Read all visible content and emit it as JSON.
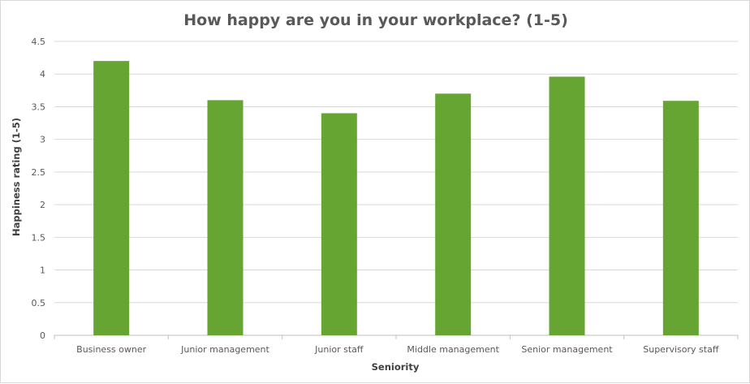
{
  "chart_data": {
    "type": "bar",
    "title": "How happy are you in your workplace? (1-5)",
    "xlabel": "Seniority",
    "ylabel": "Happiness rating (1-5)",
    "categories": [
      "Business owner",
      "Junior management",
      "Junior staff",
      "Middle management",
      "Senior management",
      "Supervisory staff"
    ],
    "values": [
      4.2,
      3.6,
      3.4,
      3.7,
      3.96,
      3.59
    ],
    "ylim": [
      0,
      4.5
    ],
    "yticks": [
      "0",
      "0.5",
      "1",
      "1.5",
      "2",
      "2.5",
      "3",
      "3.5",
      "4",
      "4.5"
    ],
    "grid": true,
    "legend": "none",
    "bar_color": "#66a532"
  }
}
